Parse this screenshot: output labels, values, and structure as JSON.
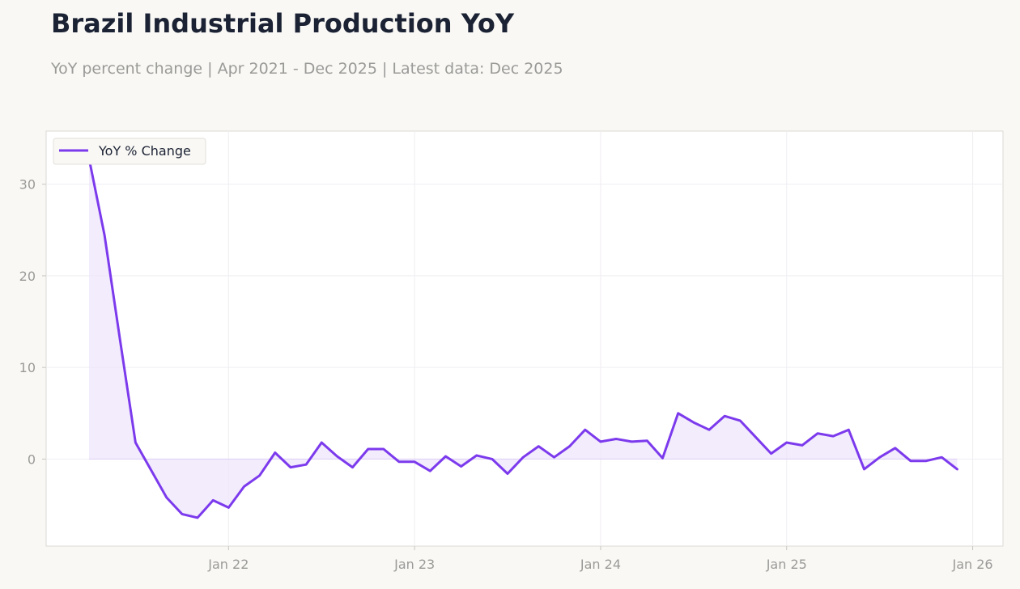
{
  "header": {
    "title": "Brazil Industrial Production YoY",
    "subtitle": "YoY percent change | Apr 2021 - Dec 2025 | Latest data: Dec 2025"
  },
  "chart_data": {
    "type": "area",
    "title": "Brazil Industrial Production YoY",
    "subtitle": "YoY percent change | Apr 2021 - Dec 2025 | Latest data: Dec 2025",
    "xlabel": "",
    "ylabel": "",
    "x_start": "2021-04",
    "x_ticks": [
      "Jan 22",
      "Jan 23",
      "Jan 24",
      "Jan 25",
      "Jan 26"
    ],
    "y_ticks": [
      0,
      10,
      20,
      30
    ],
    "ylim": [
      -9.5,
      35.8
    ],
    "grid": true,
    "legend_position": "top-left",
    "colors": {
      "line": "#7c3aed",
      "fill": "#ede4fb",
      "background": "#f9f8f5",
      "plot": "#ffffff"
    },
    "series": [
      {
        "name": "YoY % Change",
        "x": [
          "2021-04",
          "2021-05",
          "2021-06",
          "2021-07",
          "2021-08",
          "2021-09",
          "2021-10",
          "2021-11",
          "2021-12",
          "2022-01",
          "2022-02",
          "2022-03",
          "2022-04",
          "2022-05",
          "2022-06",
          "2022-07",
          "2022-08",
          "2022-09",
          "2022-10",
          "2022-11",
          "2022-12",
          "2023-01",
          "2023-02",
          "2023-03",
          "2023-04",
          "2023-05",
          "2023-06",
          "2023-07",
          "2023-08",
          "2023-09",
          "2023-10",
          "2023-11",
          "2023-12",
          "2024-01",
          "2024-02",
          "2024-03",
          "2024-04",
          "2024-05",
          "2024-06",
          "2024-07",
          "2024-08",
          "2024-09",
          "2024-10",
          "2024-11",
          "2024-12",
          "2025-01",
          "2025-02",
          "2025-03",
          "2025-04",
          "2025-05",
          "2025-06",
          "2025-07",
          "2025-08",
          "2025-09",
          "2025-10",
          "2025-11",
          "2025-12"
        ],
        "values": [
          32.8,
          24.4,
          13.0,
          1.8,
          -1.2,
          -4.2,
          -6.0,
          -6.4,
          -4.5,
          -5.3,
          -3.0,
          -1.8,
          0.7,
          -0.9,
          -0.6,
          1.8,
          0.3,
          -0.9,
          1.1,
          1.1,
          -0.3,
          -0.3,
          -1.3,
          0.3,
          -0.8,
          0.4,
          0.0,
          -1.6,
          0.2,
          1.4,
          0.2,
          1.4,
          3.2,
          1.9,
          2.2,
          1.9,
          2.0,
          0.1,
          5.0,
          4.0,
          3.2,
          4.7,
          4.2,
          2.4,
          0.6,
          1.8,
          1.5,
          2.8,
          2.5,
          3.2,
          -1.1,
          0.2,
          1.2,
          -0.2,
          -0.2,
          0.2,
          -1.1
        ]
      }
    ]
  }
}
